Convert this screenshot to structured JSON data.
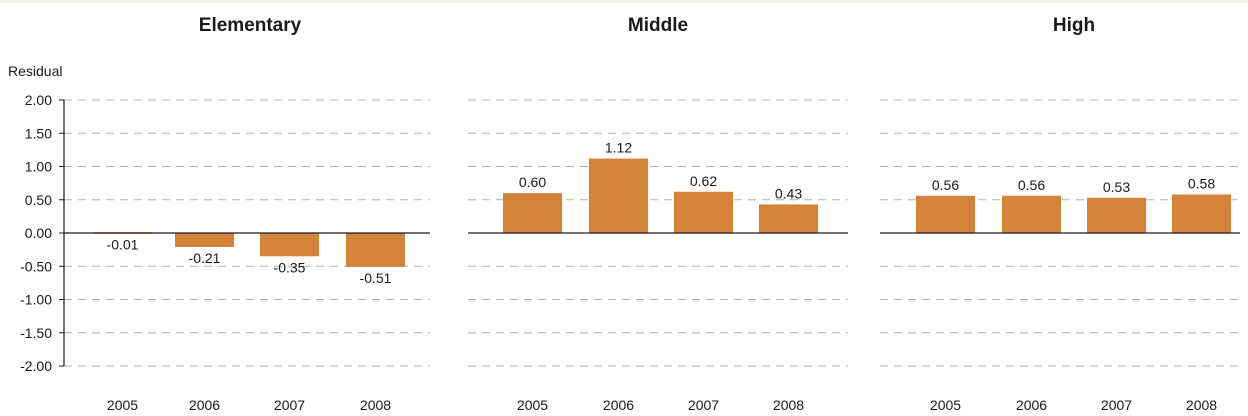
{
  "chart_data": [
    {
      "type": "bar",
      "title": "Elementary",
      "ylabel": "Residual",
      "categories": [
        "2005",
        "2006",
        "2007",
        "2008"
      ],
      "values": [
        -0.01,
        -0.21,
        -0.35,
        -0.51
      ],
      "value_labels": [
        "-0.01",
        "-0.21",
        "-0.35",
        "-0.51"
      ],
      "ylim": [
        -2.0,
        2.0
      ],
      "yticks": [
        "2.00",
        "1.50",
        "1.00",
        "0.50",
        "0.00",
        "-0.50",
        "-1.00",
        "-1.50",
        "-2.00"
      ],
      "grid": true,
      "bar_color": "#d4843a"
    },
    {
      "type": "bar",
      "title": "Middle",
      "categories": [
        "2005",
        "2006",
        "2007",
        "2008"
      ],
      "values": [
        0.6,
        1.12,
        0.62,
        0.43
      ],
      "value_labels": [
        "0.60",
        "1.12",
        "0.62",
        "0.43"
      ],
      "ylim": [
        -2.0,
        2.0
      ],
      "grid": true,
      "bar_color": "#d4843a"
    },
    {
      "type": "bar",
      "title": "High",
      "categories": [
        "2005",
        "2006",
        "2007",
        "2008"
      ],
      "values": [
        0.56,
        0.56,
        0.53,
        0.58
      ],
      "value_labels": [
        "0.56",
        "0.56",
        "0.53",
        "0.58"
      ],
      "ylim": [
        -2.0,
        2.0
      ],
      "grid": true,
      "bar_color": "#d4843a"
    }
  ],
  "colors": {
    "bar": "#d4843a",
    "grid": "#b0b0b0",
    "axis": "#1a1a1a",
    "background": "#ffffff"
  }
}
